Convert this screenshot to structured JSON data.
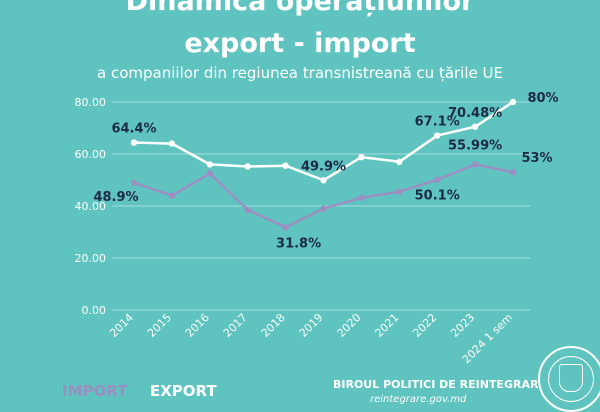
{
  "header": {
    "title_line_1": "Dinamica operațiunilor",
    "title_line_2": "export - import",
    "subtitle": "a companiilor din regiunea transnistreană cu țările UE"
  },
  "legend": {
    "import_label": "IMPORT",
    "export_label": "EXPORT"
  },
  "footer": {
    "org": "BIROUL POLITICI DE REINTEGRARE",
    "site": "reintegrare.gov.md"
  },
  "colors": {
    "background": "#5fc4c0",
    "export": "#ffffff",
    "import": "#9b8fc2",
    "label_dark": "#1f2a44"
  },
  "chart_data": {
    "type": "line",
    "title": "",
    "xlabel": "",
    "ylabel": "",
    "ylim": [
      0,
      80
    ],
    "yticks": [
      "0.00",
      "20.00",
      "40.00",
      "60.00",
      "80.00"
    ],
    "grid": true,
    "categories": [
      "2014",
      "2015",
      "2016",
      "2017",
      "2018",
      "2019",
      "2020",
      "2021",
      "2022",
      "2023",
      "2024 1 sem"
    ],
    "series": [
      {
        "name": "EXPORT",
        "color": "#ffffff",
        "values": [
          64.4,
          64,
          56,
          55.2,
          55.5,
          49.9,
          58.8,
          57,
          67.1,
          70.48,
          80
        ]
      },
      {
        "name": "IMPORT",
        "color": "#9b8fc2",
        "values": [
          48.9,
          44,
          52.5,
          38.5,
          31.8,
          39,
          43.2,
          45.5,
          50.1,
          55.99,
          53
        ]
      }
    ],
    "data_labels": [
      {
        "series": 0,
        "index": 0,
        "text": "64.4%"
      },
      {
        "series": 0,
        "index": 5,
        "text": "49.9%"
      },
      {
        "series": 0,
        "index": 8,
        "text": "67.1%"
      },
      {
        "series": 0,
        "index": 9,
        "text": "70.48%"
      },
      {
        "series": 0,
        "index": 10,
        "text": "80%"
      },
      {
        "series": 1,
        "index": 0,
        "text": "48.9%"
      },
      {
        "series": 1,
        "index": 4,
        "text": "31.8%"
      },
      {
        "series": 1,
        "index": 8,
        "text": "50.1%"
      },
      {
        "series": 1,
        "index": 9,
        "text": "55.99%"
      },
      {
        "series": 1,
        "index": 10,
        "text": "53%"
      }
    ]
  }
}
